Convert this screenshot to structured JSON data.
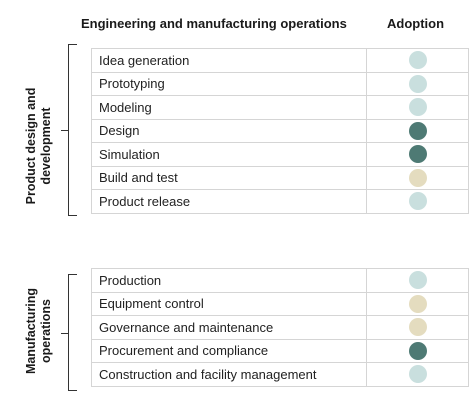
{
  "headers": {
    "operations": "Engineering and manufacturing operations",
    "adoption": "Adoption"
  },
  "colors": {
    "light_teal": "#c9dfde",
    "dark_teal": "#4e7a74",
    "beige": "#e4dcbf",
    "border": "#d5d5d5"
  },
  "sections": [
    {
      "label_line1": "Product design and",
      "label_line2": "development",
      "rows": [
        {
          "name": "Idea generation",
          "adoption": "light_teal"
        },
        {
          "name": "Prototyping",
          "adoption": "light_teal"
        },
        {
          "name": "Modeling",
          "adoption": "light_teal"
        },
        {
          "name": "Design",
          "adoption": "dark_teal"
        },
        {
          "name": "Simulation",
          "adoption": "dark_teal"
        },
        {
          "name": "Build and test",
          "adoption": "beige"
        },
        {
          "name": "Product release",
          "adoption": "light_teal"
        }
      ]
    },
    {
      "label_line1": "Manufacturing",
      "label_line2": "operations",
      "rows": [
        {
          "name": "Production",
          "adoption": "light_teal"
        },
        {
          "name": "Equipment control",
          "adoption": "beige"
        },
        {
          "name": "Governance and maintenance",
          "adoption": "beige"
        },
        {
          "name": "Procurement and compliance",
          "adoption": "dark_teal"
        },
        {
          "name": "Construction and facility management",
          "adoption": "light_teal"
        }
      ]
    }
  ]
}
